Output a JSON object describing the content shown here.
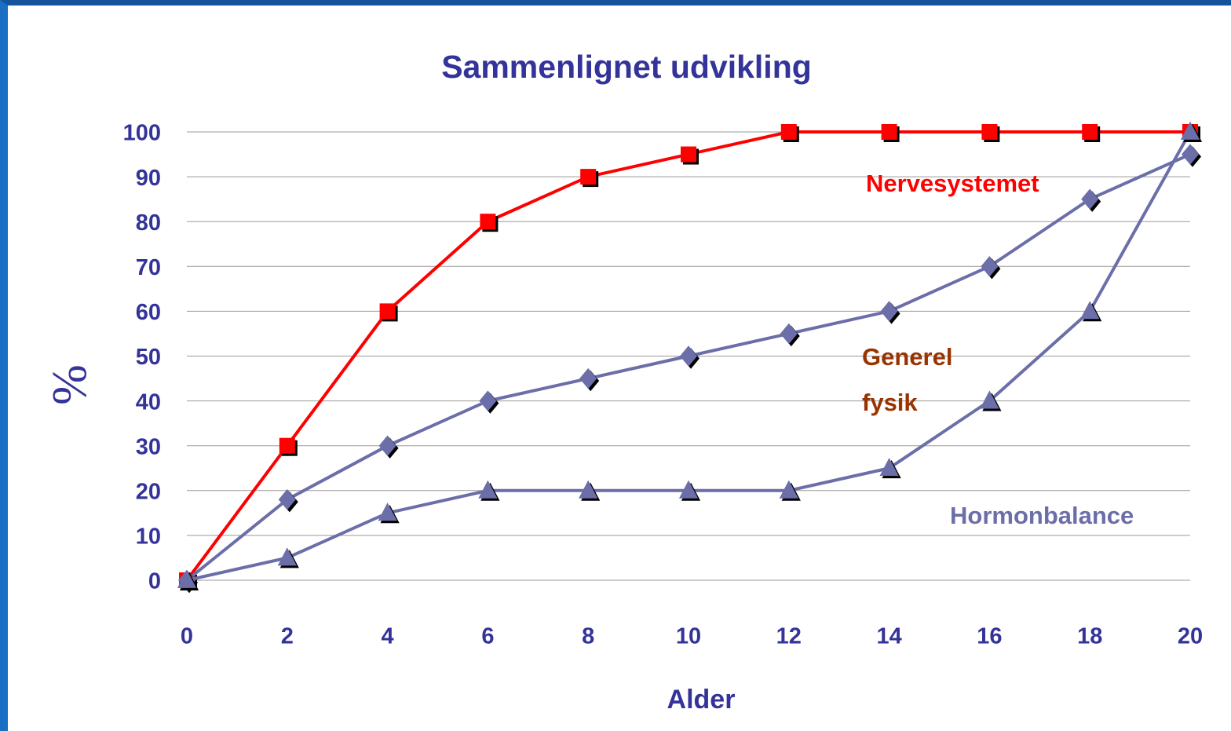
{
  "chart_data": {
    "type": "line",
    "title": "Sammenlignet udvikling",
    "x_label": "Alder",
    "y_label": "%",
    "x": [
      0,
      2,
      4,
      6,
      8,
      10,
      12,
      14,
      16,
      18,
      20
    ],
    "xlim": [
      0,
      20
    ],
    "xticks": [
      0,
      2,
      4,
      6,
      8,
      10,
      12,
      14,
      16,
      18,
      20
    ],
    "ylim": [
      0,
      100
    ],
    "yticks": [
      0,
      10,
      20,
      30,
      40,
      50,
      60,
      70,
      80,
      90,
      100
    ],
    "grid": true,
    "series": [
      {
        "name": "Nervesystemet",
        "color": "#ff0000",
        "label_color": "#ff0000",
        "marker": "square",
        "values": [
          0,
          30,
          60,
          80,
          90,
          95,
          100,
          100,
          100,
          100,
          100
        ]
      },
      {
        "name": "Generel fysik",
        "color": "#6b6ea8",
        "label_color": "#993300",
        "marker": "diamond",
        "values": [
          0,
          18,
          30,
          40,
          45,
          50,
          55,
          60,
          70,
          85,
          95
        ]
      },
      {
        "name": "Hormonbalance",
        "color": "#6b6ea8",
        "label_color": "#6b6ea8",
        "marker": "triangle",
        "values": [
          0,
          5,
          15,
          20,
          20,
          20,
          20,
          25,
          40,
          60,
          100
        ]
      }
    ]
  }
}
